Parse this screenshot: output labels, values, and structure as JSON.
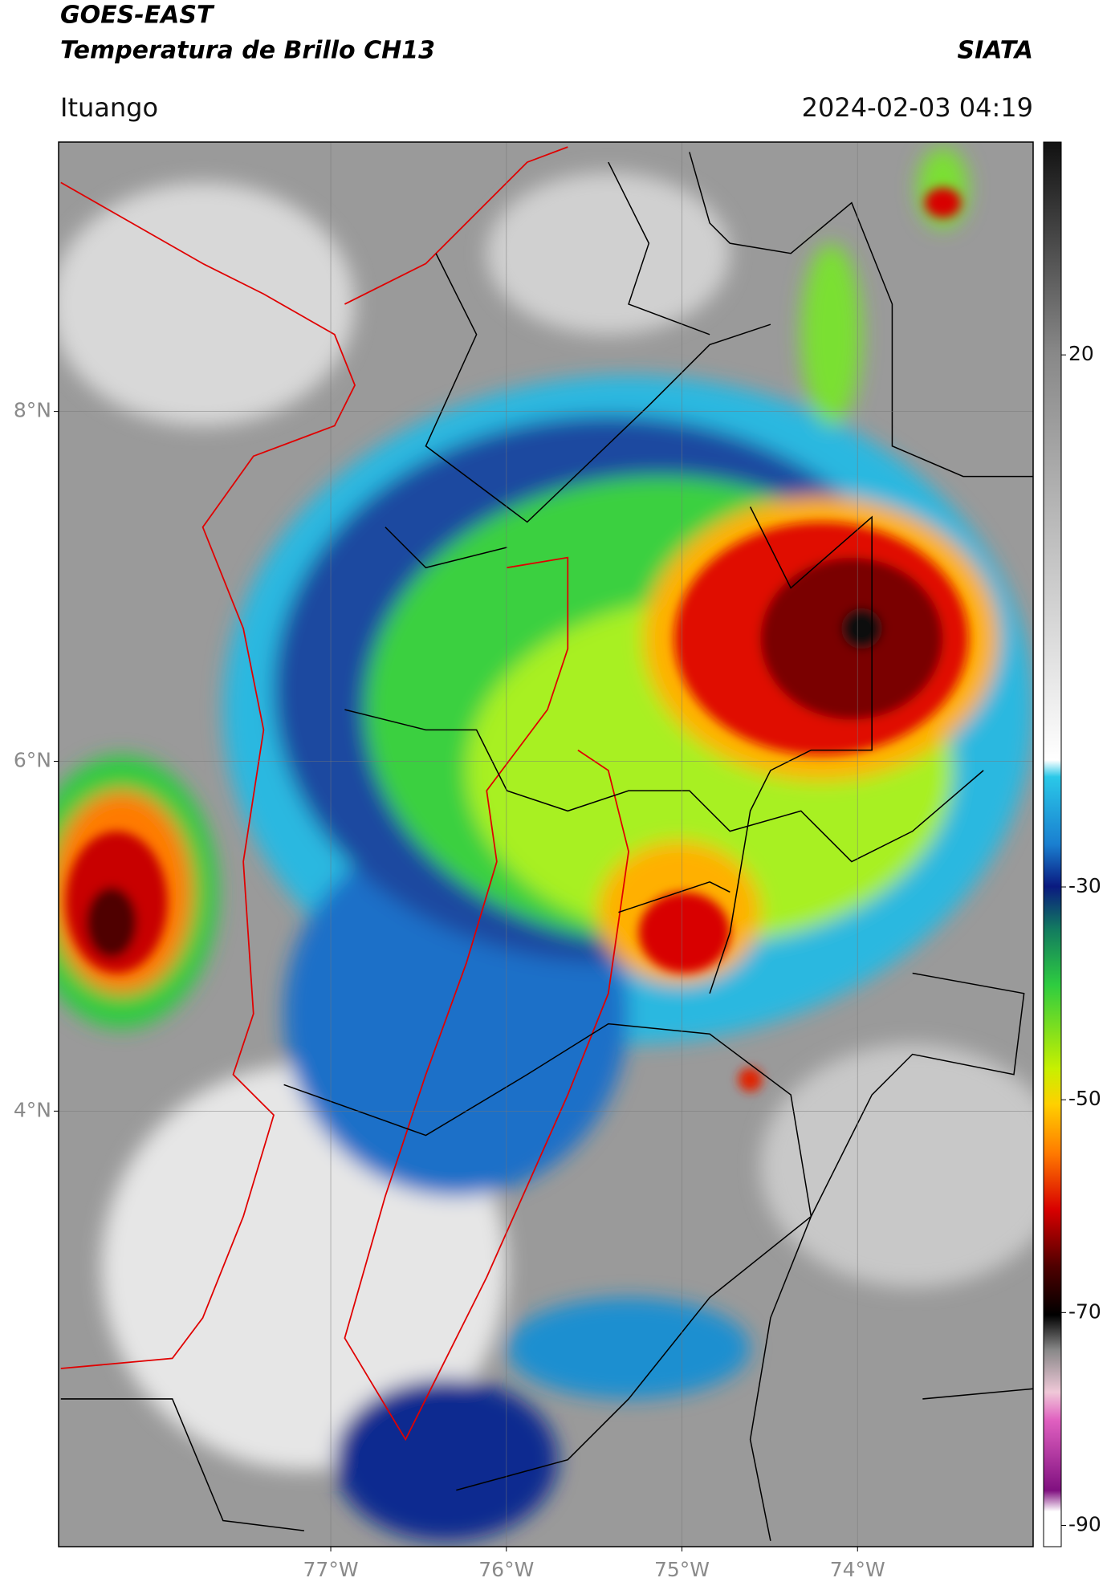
{
  "header": {
    "title_line1": "GOES-EAST",
    "title_line2": "Temperatura de Brillo CH13",
    "brand": "SIATA",
    "location": "Ituango",
    "datetime": "2024-02-03 04:19"
  },
  "map": {
    "xlim": [
      -78.55,
      -73.0
    ],
    "ylim": [
      1.51,
      9.54
    ],
    "grid": true,
    "xticks": [
      {
        "value": -77,
        "label": "77°W"
      },
      {
        "value": -76,
        "label": "76°W"
      },
      {
        "value": -75,
        "label": "75°W"
      },
      {
        "value": -74,
        "label": "74°W"
      }
    ],
    "yticks": [
      {
        "value": 8,
        "label": "8°N"
      },
      {
        "value": 6,
        "label": "6°N"
      },
      {
        "value": 4,
        "label": "4°N"
      }
    ]
  },
  "colorbar": {
    "clim": [
      -92,
      40
    ],
    "ticks": [
      20,
      -30,
      -50,
      -70,
      -90
    ]
  }
}
